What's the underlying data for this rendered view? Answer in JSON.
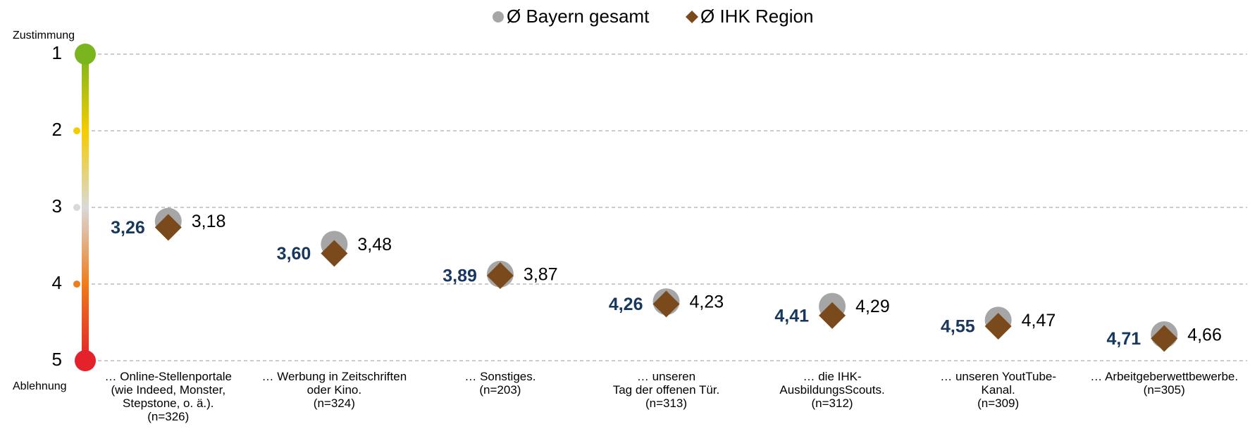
{
  "chart_data": {
    "type": "dot",
    "y_axis_top_label": "Zustimmung",
    "y_axis_bottom_label": "Ablehnung",
    "categories": [
      "… Online-Stellenportale\n(wie Indeed, Monster,\nStepstone, o. ä.).\n(n=326)",
      "… Werbung in Zeitschriften\noder Kino.\n(n=324)",
      "… Sonstiges.\n(n=203)",
      "… unseren\nTag der offenen Tür.\n(n=313)",
      "… die IHK-\nAusbildungsScouts.\n(n=312)",
      "… unseren YoutTube-\nKanal.\n(n=309)",
      "… Arbeitgeberwettbewerbe.\n(n=305)"
    ],
    "series": [
      {
        "name": "Ø Bayern gesamt",
        "color": "#a6a6a6",
        "marker": "circle",
        "label_side": "right",
        "label_color": "#000000",
        "values": [
          3.18,
          3.48,
          3.87,
          4.23,
          4.29,
          4.47,
          4.66
        ],
        "value_labels": [
          "3,18",
          "3,48",
          "3,87",
          "4,23",
          "4,29",
          "4,47",
          "4,66"
        ]
      },
      {
        "name": "Ø IHK Region",
        "color": "#7b4a1c",
        "marker": "diamond",
        "label_side": "left",
        "label_color": "#17375e",
        "values": [
          3.26,
          3.6,
          3.89,
          4.26,
          4.41,
          4.55,
          4.71
        ],
        "value_labels": [
          "3,26",
          "3,60",
          "3,89",
          "4,26",
          "4,41",
          "4,55",
          "4,71"
        ]
      }
    ],
    "ylim": [
      1,
      5
    ],
    "y_reversed": true,
    "yticks": [
      1,
      2,
      3,
      4,
      5
    ],
    "ytick_colors": [
      "#7ab51d",
      "#f5cc00",
      "#d9d9d9",
      "#ee7d1b",
      "#e3222c"
    ],
    "grid": true,
    "legend": "top"
  }
}
